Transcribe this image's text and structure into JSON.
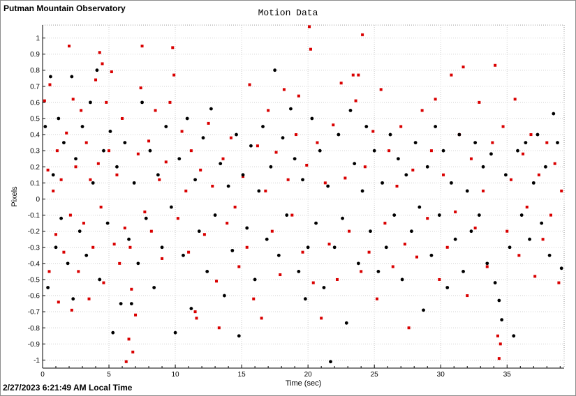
{
  "window": {
    "title": "Putman Mountain Observatory",
    "footer": "2/27/2023 6:21:49 AM Local Time"
  },
  "colors": {
    "series_a": "#d90000",
    "series_b": "#000000",
    "grid": "#cfcfcf",
    "plot_background": "#ffffff"
  },
  "chart_data": {
    "type": "scatter",
    "title": "Motion Data",
    "xlabel": "Time (sec)",
    "ylabel": "Pixels",
    "xlim": [
      0,
      39.3
    ],
    "ylim": [
      -1.05,
      1.08
    ],
    "x_ticks": [
      0,
      5,
      10,
      15,
      20,
      25,
      30,
      35
    ],
    "x_minor_step": 1,
    "y_ticks": [
      -1,
      -0.9,
      -0.8,
      -0.7,
      -0.6,
      -0.5,
      -0.4,
      -0.3,
      -0.2,
      -0.1,
      0,
      0.1,
      0.2,
      0.3,
      0.4,
      0.5,
      0.6,
      0.7,
      0.8,
      0.9,
      1
    ],
    "y_tick_labels": [
      "-1",
      "-0.9",
      "-0.8",
      "-0.7",
      "-0.6",
      "-0.5",
      "-0.4",
      "-0.3",
      "-0.2",
      "-0.1",
      "0",
      "0.1",
      "0.2",
      "0.3",
      "0.4",
      "0.5",
      "0.6",
      "0.7",
      "0.8",
      "0.9",
      "1"
    ],
    "grid": true,
    "legend": "none",
    "series": [
      {
        "color": "#d90000",
        "points": [
          [
            0.15,
            0.61
          ],
          [
            0.4,
            0.18
          ],
          [
            0.5,
            -0.45
          ],
          [
            0.55,
            0.71
          ],
          [
            0.8,
            0.05
          ],
          [
            1.0,
            -0.22
          ],
          [
            1.1,
            0.3
          ],
          [
            1.2,
            -0.64
          ],
          [
            1.4,
            0.12
          ],
          [
            1.6,
            -0.33
          ],
          [
            1.8,
            0.41
          ],
          [
            2.0,
            0.95
          ],
          [
            2.1,
            -0.1
          ],
          [
            2.2,
            -0.69
          ],
          [
            2.3,
            0.62
          ],
          [
            2.5,
            0.2
          ],
          [
            2.7,
            -0.45
          ],
          [
            2.9,
            0.55
          ],
          [
            3.1,
            -0.15
          ],
          [
            3.3,
            0.35
          ],
          [
            3.5,
            -0.62
          ],
          [
            3.6,
            0.12
          ],
          [
            3.8,
            -0.3
          ],
          [
            4.0,
            0.74
          ],
          [
            4.2,
            0.22
          ],
          [
            4.3,
            0.91
          ],
          [
            4.4,
            -0.05
          ],
          [
            4.5,
            0.84
          ],
          [
            4.6,
            -0.52
          ],
          [
            4.8,
            0.6
          ],
          [
            5.0,
            0.3
          ],
          [
            5.2,
            0.79
          ],
          [
            5.4,
            -0.28
          ],
          [
            5.6,
            0.15
          ],
          [
            5.8,
            -0.4
          ],
          [
            6.0,
            0.5
          ],
          [
            6.2,
            -0.18
          ],
          [
            6.3,
            -1.01
          ],
          [
            6.5,
            -0.87
          ],
          [
            6.6,
            -0.3
          ],
          [
            6.7,
            -0.56
          ],
          [
            6.8,
            -0.95
          ],
          [
            7.0,
            -0.72
          ],
          [
            7.2,
            0.28
          ],
          [
            7.4,
            0.69
          ],
          [
            7.5,
            0.95
          ],
          [
            7.7,
            -0.08
          ],
          [
            8.0,
            0.36
          ],
          [
            8.2,
            -0.2
          ],
          [
            8.5,
            0.55
          ],
          [
            8.8,
            0.12
          ],
          [
            9.0,
            -0.37
          ],
          [
            9.3,
            0.23
          ],
          [
            9.6,
            0.6
          ],
          [
            9.8,
            0.94
          ],
          [
            9.9,
            0.77
          ],
          [
            10.2,
            -0.12
          ],
          [
            10.5,
            0.42
          ],
          [
            10.8,
            0.05
          ],
          [
            11.0,
            -0.33
          ],
          [
            11.2,
            0.3
          ],
          [
            11.5,
            -0.7
          ],
          [
            11.6,
            -0.74
          ],
          [
            11.9,
            0.18
          ],
          [
            12.2,
            -0.22
          ],
          [
            12.5,
            0.47
          ],
          [
            12.8,
            0.08
          ],
          [
            13.1,
            -0.51
          ],
          [
            13.3,
            -0.8
          ],
          [
            13.6,
            0.25
          ],
          [
            13.9,
            -0.15
          ],
          [
            14.2,
            0.38
          ],
          [
            14.5,
            -0.05
          ],
          [
            14.8,
            -0.42
          ],
          [
            15.1,
            0.14
          ],
          [
            15.4,
            -0.3
          ],
          [
            15.6,
            0.71
          ],
          [
            15.9,
            -0.62
          ],
          [
            16.2,
            0.33
          ],
          [
            16.5,
            -0.74
          ],
          [
            16.8,
            0.05
          ],
          [
            17.0,
            0.55
          ],
          [
            17.3,
            -0.2
          ],
          [
            17.6,
            0.29
          ],
          [
            17.9,
            -0.47
          ],
          [
            18.2,
            0.68
          ],
          [
            18.5,
            0.12
          ],
          [
            18.8,
            -0.1
          ],
          [
            19.1,
            0.4
          ],
          [
            19.3,
            0.64
          ],
          [
            19.6,
            -0.33
          ],
          [
            19.9,
            0.21
          ],
          [
            20.1,
            1.07
          ],
          [
            20.2,
            0.93
          ],
          [
            20.4,
            -0.52
          ],
          [
            20.7,
            0.35
          ],
          [
            21.0,
            -0.74
          ],
          [
            21.3,
            0.1
          ],
          [
            21.6,
            -0.28
          ],
          [
            21.9,
            0.46
          ],
          [
            22.2,
            -0.5
          ],
          [
            22.5,
            0.72
          ],
          [
            22.8,
            0.13
          ],
          [
            23.1,
            -0.2
          ],
          [
            23.4,
            0.77
          ],
          [
            23.6,
            0.61
          ],
          [
            23.8,
            0.77
          ],
          [
            24.0,
            -0.45
          ],
          [
            24.1,
            1.02
          ],
          [
            24.3,
            0.2
          ],
          [
            24.6,
            -0.33
          ],
          [
            24.9,
            0.42
          ],
          [
            25.2,
            -0.62
          ],
          [
            25.5,
            0.68
          ],
          [
            25.8,
            -0.15
          ],
          [
            26.1,
            0.3
          ],
          [
            26.4,
            -0.42
          ],
          [
            26.7,
            0.08
          ],
          [
            27.0,
            0.45
          ],
          [
            27.3,
            -0.28
          ],
          [
            27.6,
            -0.8
          ],
          [
            27.9,
            0.18
          ],
          [
            28.2,
            -0.36
          ],
          [
            28.6,
            0.55
          ],
          [
            29.0,
            -0.12
          ],
          [
            29.3,
            0.3
          ],
          [
            29.6,
            0.62
          ],
          [
            29.9,
            -0.5
          ],
          [
            30.2,
            0.15
          ],
          [
            30.5,
            -0.3
          ],
          [
            30.8,
            0.77
          ],
          [
            31.1,
            -0.08
          ],
          [
            31.4,
            0.4
          ],
          [
            31.7,
            0.82
          ],
          [
            32.0,
            -0.6
          ],
          [
            32.3,
            0.25
          ],
          [
            32.6,
            -0.18
          ],
          [
            32.9,
            0.6
          ],
          [
            33.2,
            0.05
          ],
          [
            33.5,
            -0.42
          ],
          [
            33.9,
            0.35
          ],
          [
            34.1,
            0.83
          ],
          [
            34.3,
            -0.85
          ],
          [
            34.4,
            -0.99
          ],
          [
            34.5,
            -0.9
          ],
          [
            34.7,
            0.45
          ],
          [
            35.0,
            -0.2
          ],
          [
            35.3,
            0.12
          ],
          [
            35.6,
            0.62
          ],
          [
            35.9,
            -0.35
          ],
          [
            36.2,
            0.28
          ],
          [
            36.5,
            -0.05
          ],
          [
            36.8,
            0.4
          ],
          [
            37.1,
            -0.48
          ],
          [
            37.4,
            0.15
          ],
          [
            37.7,
            -0.25
          ],
          [
            38.0,
            0.35
          ],
          [
            38.3,
            -0.1
          ],
          [
            38.6,
            0.22
          ],
          [
            38.9,
            -0.52
          ],
          [
            39.1,
            0.05
          ]
        ]
      },
      {
        "color": "#000000",
        "points": [
          [
            0.2,
            0.45
          ],
          [
            0.4,
            -0.55
          ],
          [
            0.6,
            0.76
          ],
          [
            0.8,
            0.15
          ],
          [
            1.0,
            -0.3
          ],
          [
            1.2,
            0.5
          ],
          [
            1.4,
            -0.12
          ],
          [
            1.6,
            0.35
          ],
          [
            1.9,
            -0.4
          ],
          [
            2.2,
            0.76
          ],
          [
            2.3,
            -0.62
          ],
          [
            2.5,
            0.25
          ],
          [
            2.8,
            -0.2
          ],
          [
            3.0,
            0.45
          ],
          [
            3.3,
            -0.35
          ],
          [
            3.6,
            0.6
          ],
          [
            3.8,
            0.1
          ],
          [
            4.1,
            0.8
          ],
          [
            4.3,
            -0.5
          ],
          [
            4.6,
            0.3
          ],
          [
            4.9,
            -0.15
          ],
          [
            5.1,
            0.42
          ],
          [
            5.3,
            -0.83
          ],
          [
            5.6,
            0.2
          ],
          [
            5.9,
            -0.65
          ],
          [
            6.2,
            0.35
          ],
          [
            6.5,
            -0.25
          ],
          [
            6.7,
            -0.65
          ],
          [
            6.9,
            0.1
          ],
          [
            7.2,
            -0.4
          ],
          [
            7.5,
            0.6
          ],
          [
            7.8,
            -0.12
          ],
          [
            8.1,
            0.3
          ],
          [
            8.4,
            -0.55
          ],
          [
            8.7,
            0.15
          ],
          [
            9.0,
            -0.3
          ],
          [
            9.3,
            0.45
          ],
          [
            9.7,
            -0.05
          ],
          [
            10.0,
            -0.83
          ],
          [
            10.3,
            0.25
          ],
          [
            10.6,
            -0.35
          ],
          [
            10.9,
            0.5
          ],
          [
            11.2,
            -0.68
          ],
          [
            11.5,
            0.12
          ],
          [
            11.8,
            -0.2
          ],
          [
            12.1,
            0.38
          ],
          [
            12.4,
            -0.45
          ],
          [
            12.7,
            0.56
          ],
          [
            13.0,
            -0.1
          ],
          [
            13.4,
            0.22
          ],
          [
            13.7,
            -0.6
          ],
          [
            14.0,
            0.08
          ],
          [
            14.3,
            -0.32
          ],
          [
            14.6,
            0.4
          ],
          [
            14.8,
            -0.85
          ],
          [
            15.1,
            0.15
          ],
          [
            15.4,
            -0.18
          ],
          [
            15.7,
            0.33
          ],
          [
            16.0,
            -0.5
          ],
          [
            16.3,
            0.05
          ],
          [
            16.6,
            0.45
          ],
          [
            16.9,
            -0.25
          ],
          [
            17.2,
            0.2
          ],
          [
            17.5,
            0.8
          ],
          [
            17.8,
            -0.35
          ],
          [
            18.1,
            0.38
          ],
          [
            18.4,
            -0.1
          ],
          [
            18.7,
            0.56
          ],
          [
            19.0,
            0.25
          ],
          [
            19.3,
            -0.45
          ],
          [
            19.6,
            0.12
          ],
          [
            19.8,
            -0.62
          ],
          [
            20.0,
            -0.3
          ],
          [
            20.3,
            0.5
          ],
          [
            20.6,
            -0.15
          ],
          [
            20.9,
            0.3
          ],
          [
            21.2,
            -0.55
          ],
          [
            21.5,
            0.08
          ],
          [
            21.7,
            -1.01
          ],
          [
            22.0,
            -0.3
          ],
          [
            22.3,
            0.4
          ],
          [
            22.6,
            -0.12
          ],
          [
            22.9,
            -0.77
          ],
          [
            23.2,
            0.55
          ],
          [
            23.5,
            0.22
          ],
          [
            23.8,
            -0.4
          ],
          [
            24.1,
            0.05
          ],
          [
            24.4,
            0.45
          ],
          [
            24.7,
            -0.2
          ],
          [
            25.0,
            0.3
          ],
          [
            25.3,
            -0.45
          ],
          [
            25.6,
            0.1
          ],
          [
            25.9,
            -0.3
          ],
          [
            26.2,
            0.4
          ],
          [
            26.5,
            -0.1
          ],
          [
            26.8,
            0.25
          ],
          [
            27.1,
            -0.5
          ],
          [
            27.4,
            0.15
          ],
          [
            27.8,
            -0.2
          ],
          [
            28.1,
            0.35
          ],
          [
            28.4,
            -0.05
          ],
          [
            28.7,
            -0.69
          ],
          [
            29.0,
            0.2
          ],
          [
            29.3,
            -0.35
          ],
          [
            29.6,
            0.45
          ],
          [
            29.9,
            -0.1
          ],
          [
            30.2,
            0.3
          ],
          [
            30.5,
            -0.55
          ],
          [
            30.8,
            0.1
          ],
          [
            31.1,
            -0.25
          ],
          [
            31.4,
            0.4
          ],
          [
            31.7,
            -0.45
          ],
          [
            32.0,
            0.05
          ],
          [
            32.3,
            -0.2
          ],
          [
            32.6,
            0.35
          ],
          [
            32.9,
            -0.1
          ],
          [
            33.2,
            0.2
          ],
          [
            33.5,
            -0.4
          ],
          [
            33.8,
            0.28
          ],
          [
            34.1,
            -0.52
          ],
          [
            34.4,
            -0.63
          ],
          [
            34.6,
            -0.75
          ],
          [
            34.9,
            0.15
          ],
          [
            35.2,
            -0.3
          ],
          [
            35.5,
            -0.85
          ],
          [
            35.8,
            0.3
          ],
          [
            36.1,
            -0.1
          ],
          [
            36.4,
            0.35
          ],
          [
            36.7,
            -0.25
          ],
          [
            37.0,
            0.1
          ],
          [
            37.3,
            0.4
          ],
          [
            37.6,
            -0.15
          ],
          [
            37.9,
            0.2
          ],
          [
            38.2,
            -0.35
          ],
          [
            38.5,
            0.53
          ],
          [
            38.8,
            0.35
          ],
          [
            39.1,
            -0.43
          ]
        ]
      }
    ]
  }
}
